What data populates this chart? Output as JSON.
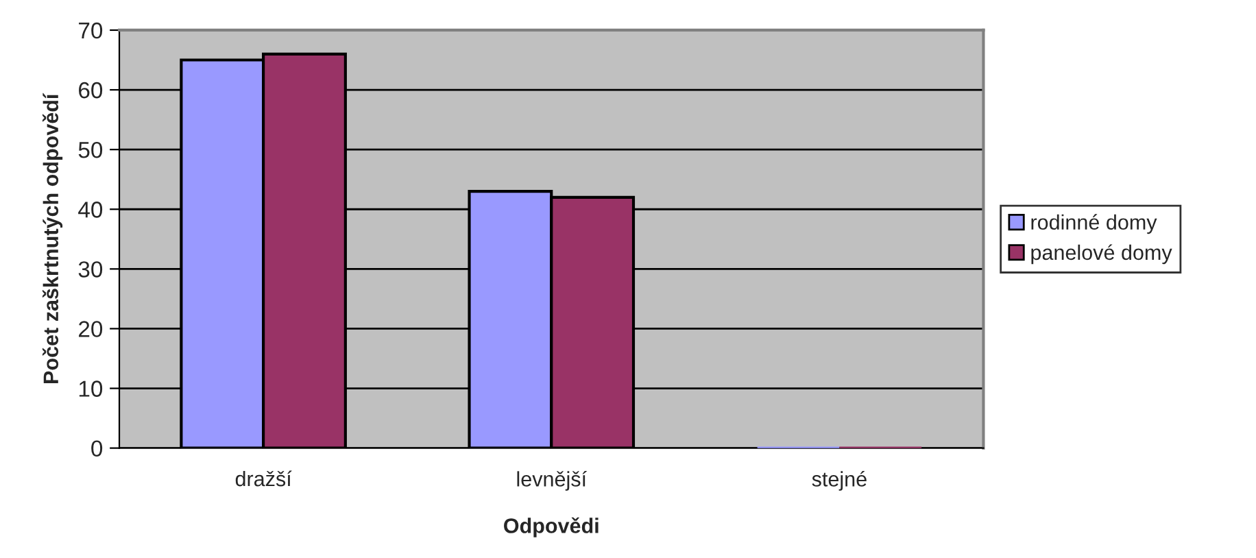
{
  "chart_data": {
    "type": "bar",
    "xlabel": "Odpovědi",
    "ylabel": "Počet zaškrtnutých odpovědí",
    "categories": [
      "dražší",
      "levnější",
      "stejné"
    ],
    "series": [
      {
        "name": "rodinné domy",
        "color": "#9999ff",
        "values": [
          65,
          43,
          0
        ]
      },
      {
        "name": "panelové domy",
        "color": "#993366",
        "values": [
          66,
          42,
          0
        ]
      }
    ],
    "ylim": [
      0,
      70
    ],
    "yticks": [
      0,
      10,
      20,
      30,
      40,
      50,
      60,
      70
    ],
    "grid": "y",
    "legend": "right"
  }
}
